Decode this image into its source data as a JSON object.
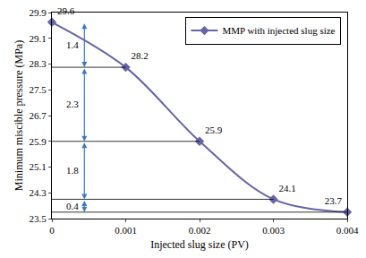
{
  "chart_data": {
    "type": "line",
    "x_label": "Injected slug size (PV)",
    "y_label": "Minimum miscible pressure (MPa)",
    "series": [
      {
        "name": "MMP with injected slug size",
        "color": "#6464a8",
        "marker": "diamond",
        "x": [
          0,
          0.001,
          0.002,
          0.003,
          0.004
        ],
        "values": [
          29.6,
          28.2,
          25.9,
          24.1,
          23.7
        ]
      }
    ],
    "data_labels": true,
    "xlim": [
      0,
      0.004
    ],
    "xticks": [
      0,
      0.001,
      0.002,
      0.003,
      0.004
    ],
    "ylim": [
      23.5,
      29.9
    ],
    "yticks": [
      23.5,
      24.3,
      25.1,
      25.9,
      26.7,
      27.5,
      28.3,
      29.1,
      29.9
    ],
    "grid": false,
    "legend": "top right",
    "annotations": [
      {
        "text": "1.4",
        "y_from": 29.6,
        "y_to": 28.2
      },
      {
        "text": "2.3",
        "y_from": 28.2,
        "y_to": 25.9
      },
      {
        "text": "1.8",
        "y_from": 25.9,
        "y_to": 24.1
      },
      {
        "text": "0.4",
        "y_from": 24.1,
        "y_to": 23.7
      }
    ]
  }
}
